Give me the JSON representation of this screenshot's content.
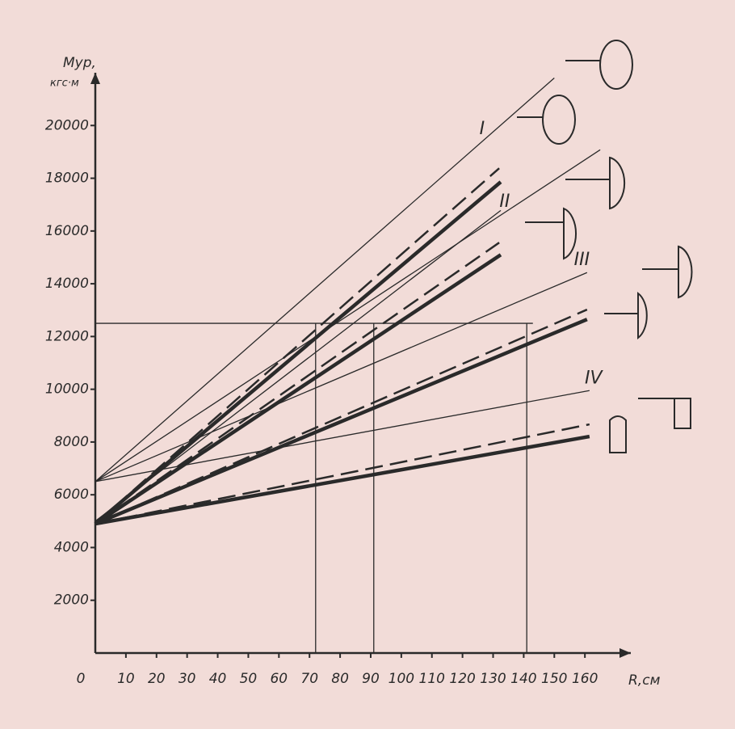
{
  "chart_data": {
    "type": "line",
    "y_label": "Мур,",
    "y_unit": "кгс·м",
    "x_label": "R,см",
    "xlim": [
      0,
      175
    ],
    "ylim": [
      0,
      22000
    ],
    "xticks": [
      0,
      10,
      20,
      30,
      40,
      50,
      60,
      70,
      80,
      90,
      100,
      110,
      120,
      130,
      140,
      150,
      160
    ],
    "yticks": [
      2000,
      4000,
      6000,
      8000,
      10000,
      12000,
      14000,
      16000,
      18000,
      20000
    ],
    "color": "#2a2a2a",
    "series": [
      {
        "style": "thin",
        "x": [
          0,
          150
        ],
        "values": [
          6500,
          21800
        ]
      },
      {
        "style": "thin",
        "x": [
          0,
          165
        ],
        "values": [
          6500,
          19080
        ]
      },
      {
        "style": "thin",
        "x": [
          0,
          160.7
        ],
        "values": [
          6500,
          14425
        ]
      },
      {
        "style": "thin",
        "x": [
          0,
          161.5
        ],
        "values": [
          6500,
          9950
        ]
      },
      {
        "style": "thin",
        "x": [
          0,
          132.5
        ],
        "values": [
          5000,
          16780
        ]
      },
      {
        "style": "thick",
        "x": [
          0,
          132.5
        ],
        "values": [
          4900,
          17860
        ]
      },
      {
        "style": "thick",
        "x": [
          0,
          132.5
        ],
        "values": [
          4900,
          15100
        ]
      },
      {
        "style": "thick",
        "x": [
          0,
          160.7
        ],
        "values": [
          4900,
          12650
        ]
      },
      {
        "style": "thick",
        "x": [
          0,
          161.5
        ],
        "values": [
          4900,
          8210
        ]
      },
      {
        "style": "dashed",
        "x": [
          0,
          132
        ],
        "values": [
          4900,
          18380
        ]
      },
      {
        "style": "dashed",
        "x": [
          0,
          132
        ],
        "values": [
          4900,
          15560
        ]
      },
      {
        "style": "dashed",
        "x": [
          0,
          160.7
        ],
        "values": [
          4900,
          13020
        ]
      },
      {
        "style": "dashed",
        "x": [
          0,
          161.5
        ],
        "values": [
          4900,
          8670
        ]
      }
    ],
    "guides": {
      "y": 12500,
      "y_to_x": 143,
      "x": [
        72,
        91,
        141
      ]
    },
    "annotations": [
      {
        "text": "I",
        "x": 126.4,
        "y": 19850
      },
      {
        "text": "II",
        "x": 133.8,
        "y": 17090
      },
      {
        "text": "III",
        "x": 159,
        "y": 14890
      },
      {
        "text": "IV",
        "x": 162.8,
        "y": 10410
      }
    ]
  }
}
